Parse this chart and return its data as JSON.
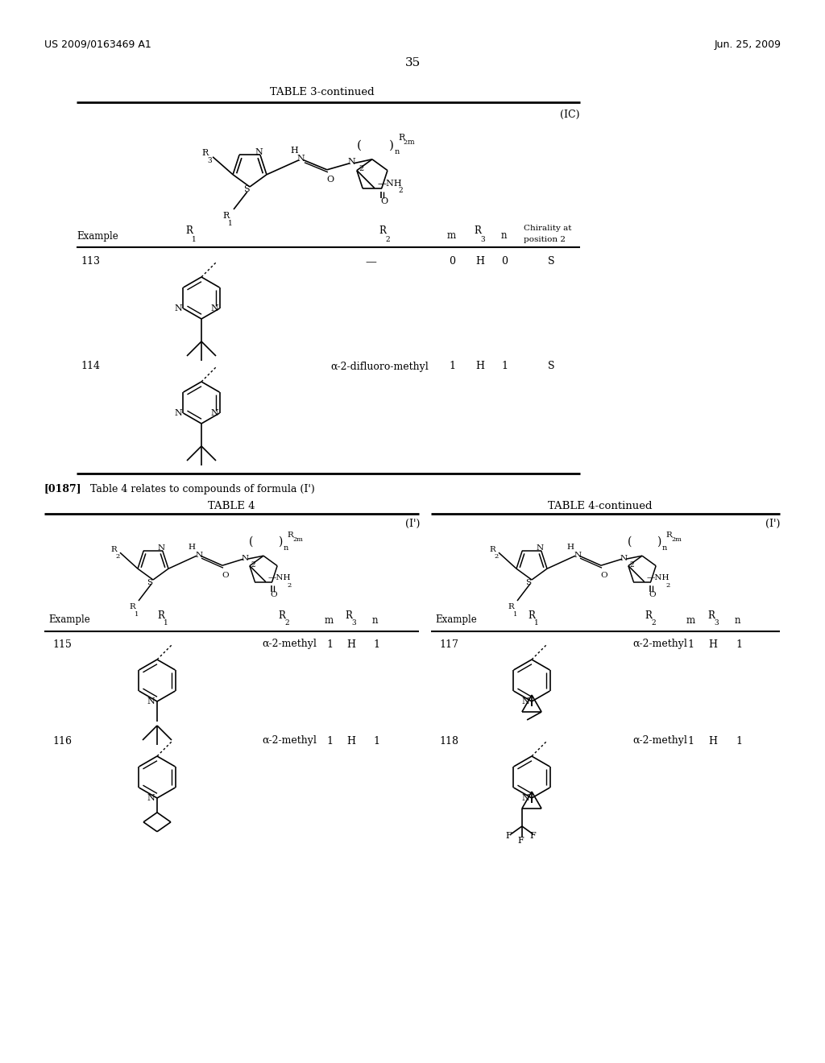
{
  "page_number": "35",
  "patent_left": "US 2009/0163469 A1",
  "patent_right": "Jun. 25, 2009",
  "bg_color": "#ffffff"
}
